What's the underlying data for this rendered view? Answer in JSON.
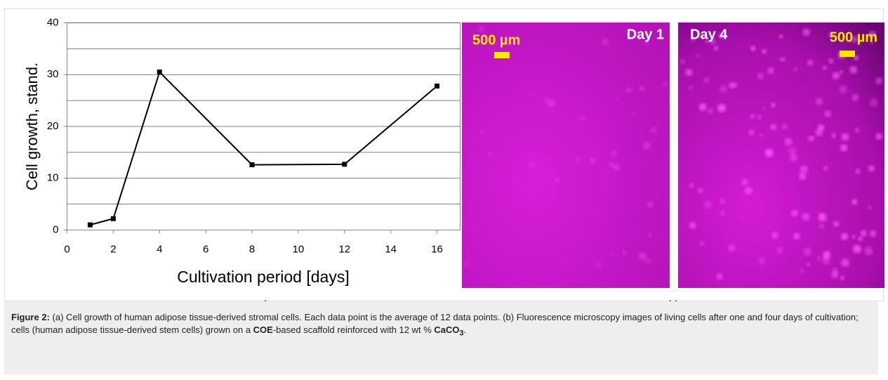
{
  "chart_data": {
    "type": "line",
    "y_label": "Cell growth, stand.",
    "x_label": "Cultivation period [days]",
    "x": [
      1,
      2,
      4,
      8,
      12,
      16
    ],
    "series": [
      {
        "name": "Cell growth",
        "color": "#000000",
        "values": [
          1.0,
          2.2,
          30.5,
          12.6,
          12.7,
          27.8
        ]
      }
    ],
    "xlim": [
      0,
      17
    ],
    "xticks": [
      0,
      2,
      4,
      6,
      8,
      10,
      12,
      14,
      16
    ],
    "ylim": [
      0,
      40
    ],
    "yticks": [
      0,
      10,
      20,
      30,
      40
    ],
    "ygrid": [
      5,
      10,
      15,
      20,
      25,
      30,
      35,
      40
    ],
    "grid": true
  },
  "panel_labels": [
    "a)",
    "b)"
  ],
  "images": [
    {
      "day_label": "Day 1",
      "scale_label": "500 µm"
    },
    {
      "day_label": "Day 4",
      "scale_label": "500 µm"
    }
  ],
  "caption": {
    "label": "Figure 2:",
    "text_1": " (a) Cell growth of human adipose tissue-derived stromal cells. Each data point is the average of 12 data points. (b) Fluorescence microscopy images of living cells after one and four days of cultivation; cells (human adipose tissue-derived stem cells) grown on a ",
    "bold_1": "COE",
    "text_2": "-based scaffold reinforced with 12 wt % ",
    "bold_2": "CaCO",
    "bold_2_sub": "3",
    "text_3": "."
  }
}
